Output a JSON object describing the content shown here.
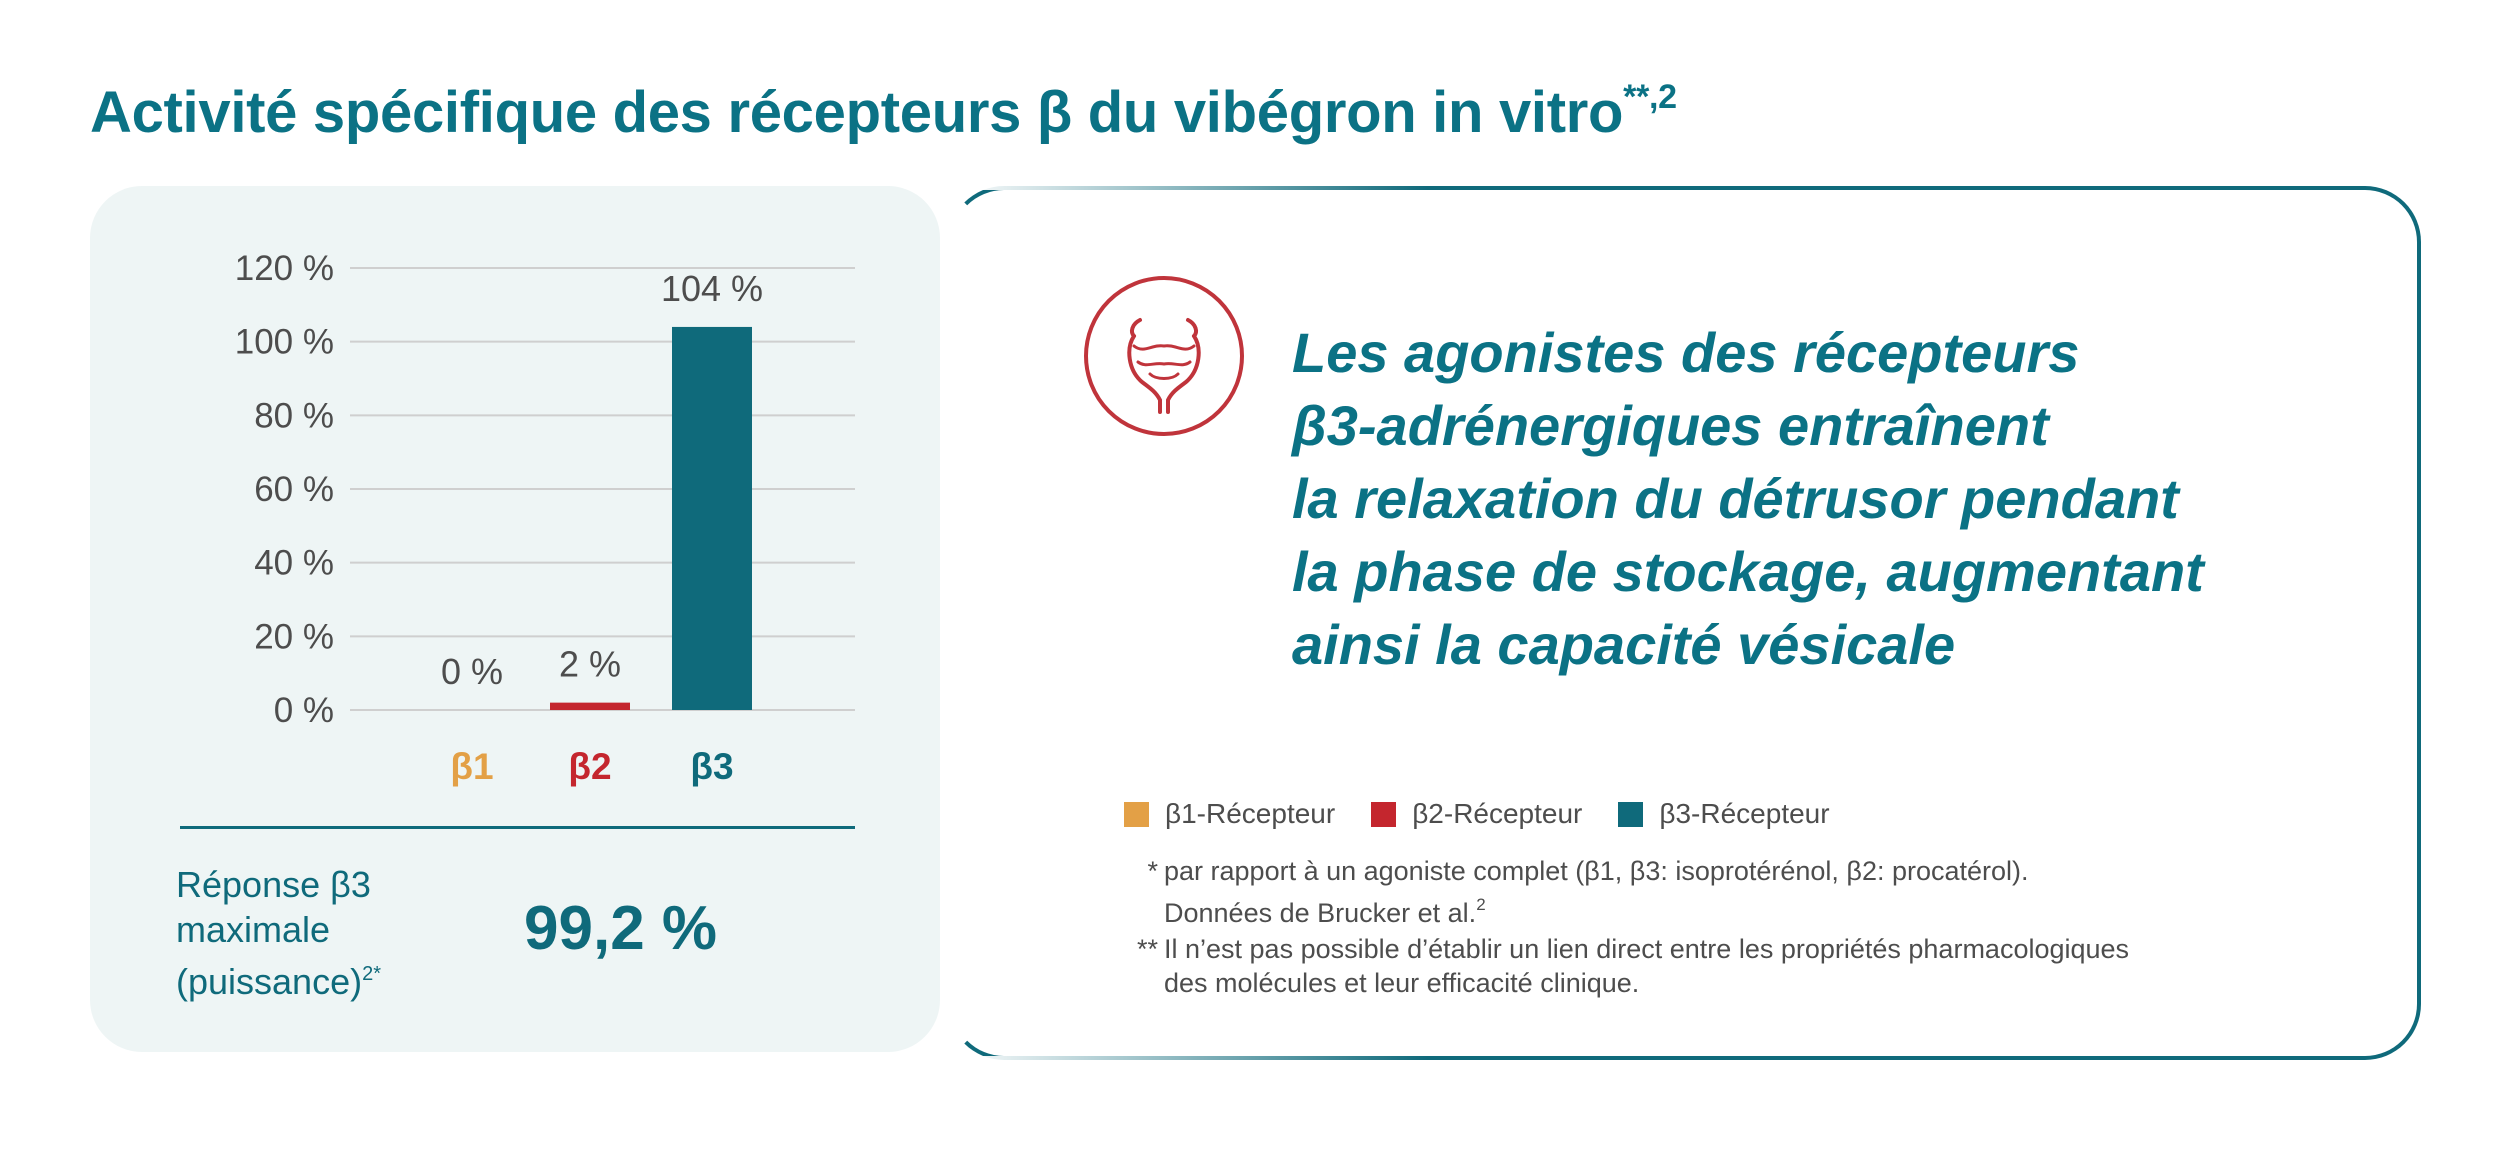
{
  "title": {
    "main": "Activité spécifique des récepteurs β du vibégron in vitro",
    "superscript": "**,2"
  },
  "colors": {
    "b1": "#e3a046",
    "b2": "#c4262e",
    "b3": "#0f6a7b",
    "gridline": "#cfcfcf",
    "icon": "#c0343b"
  },
  "chart_data": {
    "type": "bar",
    "categories": [
      "β1",
      "β2",
      "β3"
    ],
    "values": [
      0,
      2,
      104
    ],
    "value_labels": [
      "0 %",
      "2 %",
      "104 %"
    ],
    "ylim": [
      0,
      120
    ],
    "yticks": [
      0,
      20,
      40,
      60,
      80,
      100,
      120
    ],
    "ytick_labels": [
      "0 %",
      "20 %",
      "40 %",
      "60 %",
      "80 %",
      "100 %",
      "120 %"
    ],
    "grid": true,
    "xlabel": "",
    "ylabel": ""
  },
  "response": {
    "label_lines": [
      "Réponse β3",
      "maximale",
      "(puissance)"
    ],
    "label_sup": "2*",
    "value": "99,2 %"
  },
  "headline_lines": [
    "Les agonistes des récepteurs",
    "β3-adrénergiques entraînent",
    "la relaxation du détrusor pendant",
    "la phase de stockage, augmentant",
    "ainsi la capacité vésicale"
  ],
  "icon": "bladder-icon",
  "legend": [
    "β1-Récepteur",
    "β2-Récepteur",
    "β3-Récepteur"
  ],
  "footnotes": {
    "f1": {
      "mark": "*",
      "line1": "par rapport à un agoniste complet (β1, β3: isoprotérénol, β2: procatérol).",
      "line2": "Données de Brucker et al.",
      "line2_sup": "2"
    },
    "f2": {
      "mark": "**",
      "line1": "Il n’est pas possible d’établir un lien direct entre les propriétés pharmacologiques",
      "line2": "des molécules et leur efficacité clinique."
    }
  }
}
